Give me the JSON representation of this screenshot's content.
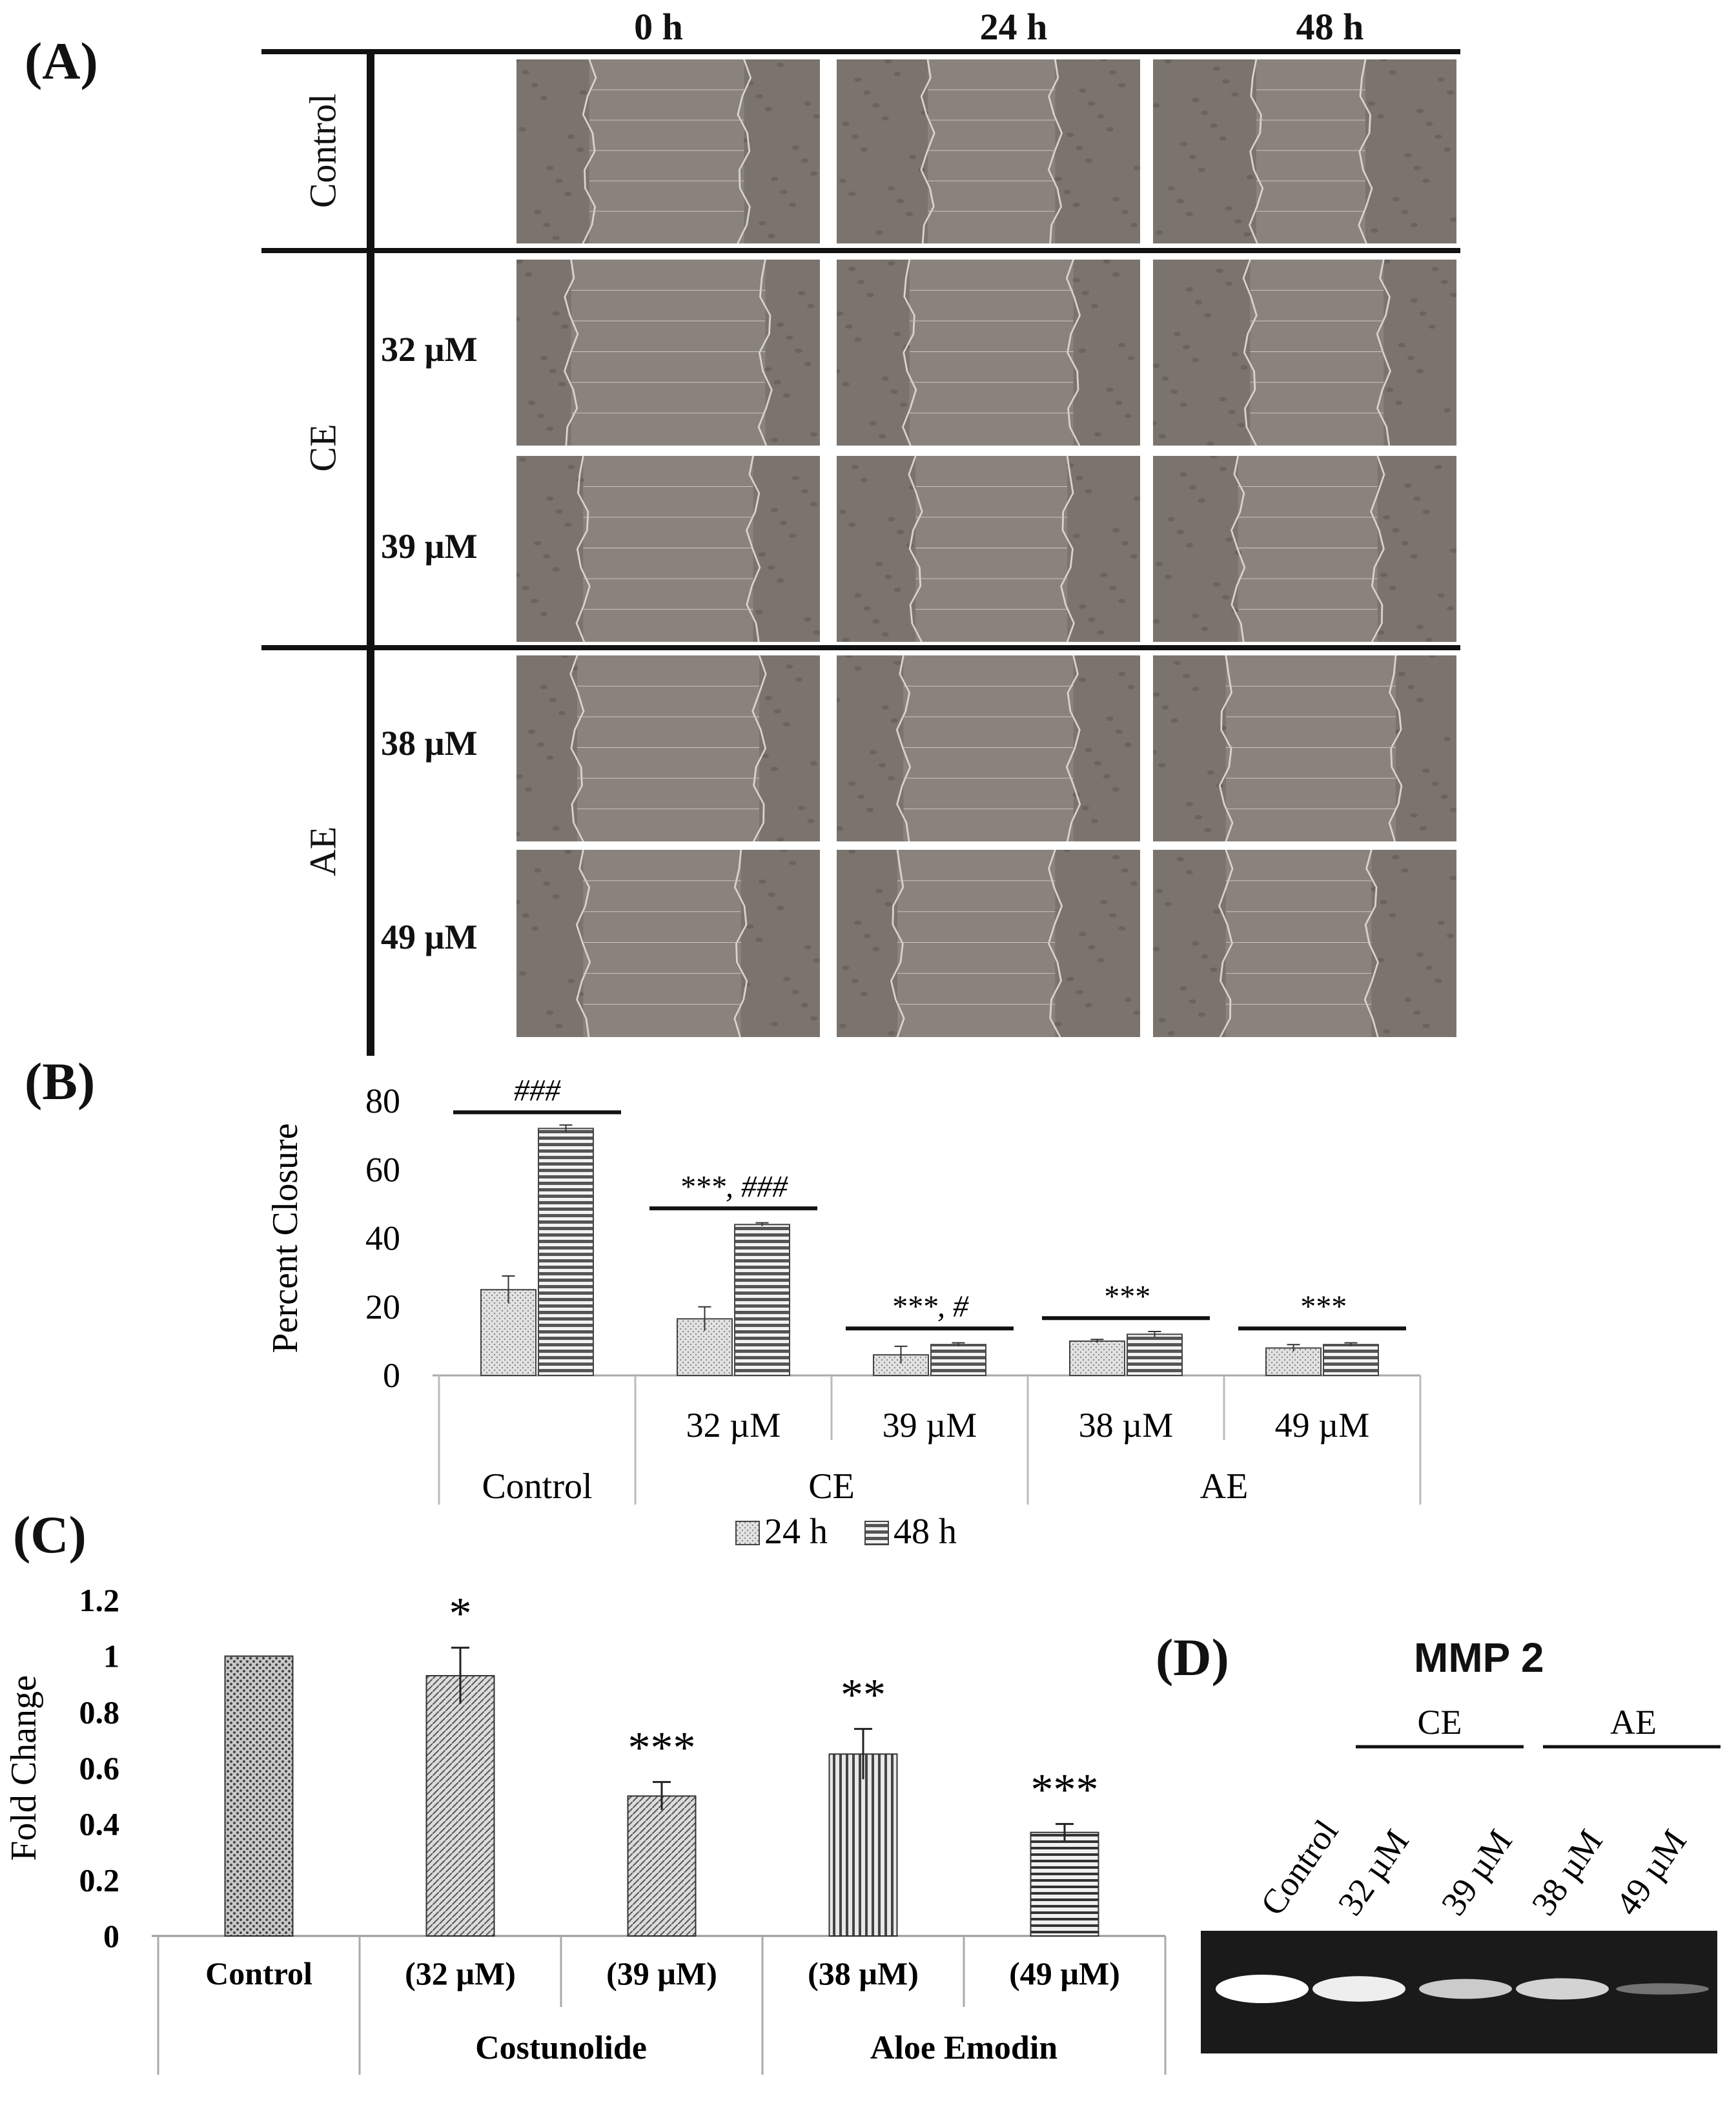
{
  "panels": {
    "A": "(A)",
    "B": "(B)",
    "C": "(C)",
    "D": "(D)"
  },
  "panel_a": {
    "columns": [
      "0 h",
      "24 h",
      "48 h"
    ],
    "groups": [
      "Control",
      "CE",
      "AE"
    ],
    "concentrations": [
      "32 µM",
      "39 µM",
      "38 µM",
      "49 µM"
    ]
  },
  "chart_data": [
    {
      "type": "bar",
      "panel": "B",
      "ylabel": "Percent Closure",
      "ylim": [
        0,
        80
      ],
      "yticks": [
        0,
        20,
        40,
        60,
        80
      ],
      "categories": [
        "",
        "32 µM",
        "39 µM",
        "38 µM",
        "49 µM"
      ],
      "groups": [
        {
          "label": "Control",
          "span": [
            0,
            0
          ]
        },
        {
          "label": "CE",
          "span": [
            1,
            2
          ]
        },
        {
          "label": "AE",
          "span": [
            3,
            4
          ]
        }
      ],
      "series": [
        {
          "name": "24 h",
          "values": [
            25,
            16.5,
            6,
            10,
            8
          ],
          "errors": [
            4,
            3.5,
            2.5,
            0.5,
            1
          ]
        },
        {
          "name": "48 h",
          "values": [
            72,
            44,
            9,
            12,
            9
          ],
          "errors": [
            1,
            0.5,
            0.5,
            0.8,
            0.5
          ]
        }
      ],
      "annotations": [
        "###",
        "***, ###",
        "***, #",
        "***",
        "***"
      ],
      "legend": "bottom"
    },
    {
      "type": "bar",
      "panel": "C",
      "ylabel": "Fold Change",
      "ylim": [
        0,
        1.2
      ],
      "yticks": [
        "0",
        "0.2",
        "0.4",
        "0.6",
        "0.8",
        "1",
        "1.2"
      ],
      "categories": [
        "Control",
        "(32 µM)",
        "(39 µM)",
        "(38 µM)",
        "(49 µM)"
      ],
      "groups": [
        {
          "label": "Costunolide",
          "span": [
            1,
            2
          ]
        },
        {
          "label": "Aloe Emodin",
          "span": [
            3,
            4
          ]
        }
      ],
      "values": [
        1.0,
        0.93,
        0.5,
        0.65,
        0.37
      ],
      "errors": [
        0,
        0.1,
        0.05,
        0.09,
        0.03
      ],
      "annotations": [
        "",
        "*",
        "***",
        "**",
        "***"
      ]
    }
  ],
  "panel_d": {
    "title": "MMP 2",
    "groups": [
      "CE",
      "AE"
    ],
    "lanes": [
      "Control",
      "32 µM",
      "39 µM",
      "38 µM",
      "49 µM"
    ],
    "band_intensity": [
      1.0,
      0.9,
      0.7,
      0.75,
      0.2
    ]
  }
}
